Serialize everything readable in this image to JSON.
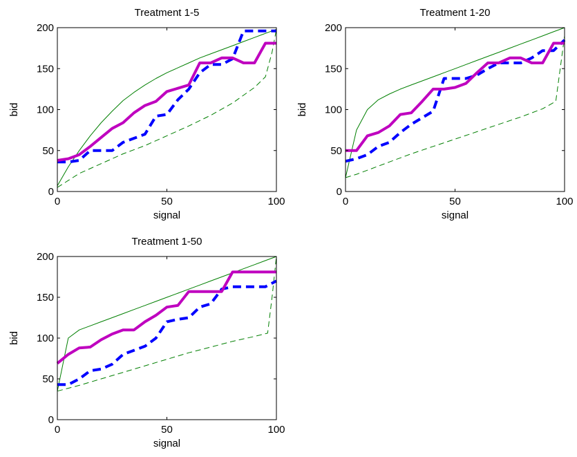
{
  "chart_data": [
    {
      "type": "line",
      "title": "Treatment 1-5",
      "xlabel": "signal",
      "ylabel": "bid",
      "xlim": [
        0,
        100
      ],
      "ylim": [
        0,
        200
      ],
      "xticks": [
        "0",
        "50",
        "100"
      ],
      "yticks": [
        "0",
        "50",
        "100",
        "150",
        "200"
      ],
      "grid": false,
      "series": [
        {
          "color": "#007f00",
          "style": "solid-thin",
          "x": [
            0,
            5,
            10,
            15,
            20,
            25,
            30,
            35,
            40,
            45,
            50,
            55,
            60,
            65,
            70,
            75,
            80,
            85,
            90,
            95,
            100
          ],
          "y": [
            7,
            30,
            50,
            68,
            84,
            98,
            111,
            121,
            130,
            138,
            145,
            151,
            157,
            163,
            168,
            173,
            178,
            183,
            188,
            193,
            198
          ]
        },
        {
          "color": "#007f00",
          "style": "dashed-thin",
          "x": [
            0,
            10,
            20,
            30,
            40,
            50,
            60,
            70,
            80,
            90,
            95,
            98,
            100
          ],
          "y": [
            5,
            22,
            34,
            46,
            56,
            68,
            80,
            93,
            108,
            127,
            140,
            170,
            198
          ]
        },
        {
          "color": "#0000ff",
          "style": "dashed-thick",
          "x": [
            0,
            5,
            10,
            15,
            20,
            25,
            30,
            35,
            40,
            45,
            50,
            55,
            60,
            65,
            70,
            75,
            80,
            85,
            90,
            95,
            100
          ],
          "y": [
            36,
            36,
            38,
            50,
            50,
            50,
            60,
            65,
            70,
            92,
            94,
            112,
            125,
            145,
            155,
            155,
            162,
            196,
            196,
            196,
            196
          ]
        },
        {
          "color": "#bf00bf",
          "style": "solid-thick",
          "x": [
            0,
            5,
            10,
            15,
            20,
            25,
            30,
            35,
            40,
            45,
            50,
            55,
            60,
            65,
            70,
            75,
            80,
            85,
            90,
            95,
            100
          ],
          "y": [
            38,
            40,
            45,
            55,
            66,
            77,
            84,
            96,
            105,
            110,
            122,
            126,
            130,
            157,
            157,
            163,
            163,
            157,
            157,
            181,
            181
          ]
        }
      ]
    },
    {
      "type": "line",
      "title": "Treatment 1-20",
      "xlabel": "signal",
      "ylabel": "bid",
      "xlim": [
        0,
        100
      ],
      "ylim": [
        0,
        200
      ],
      "xticks": [
        "0",
        "50",
        "100"
      ],
      "yticks": [
        "0",
        "50",
        "100",
        "150",
        "200"
      ],
      "grid": false,
      "series": [
        {
          "color": "#007f00",
          "style": "solid-thin",
          "x": [
            0,
            5,
            10,
            15,
            20,
            25,
            30,
            35,
            40,
            45,
            50,
            55,
            60,
            65,
            70,
            75,
            80,
            85,
            90,
            95,
            100
          ],
          "y": [
            17,
            75,
            100,
            112,
            119,
            125,
            130,
            135,
            140,
            145,
            150,
            155,
            160,
            165,
            170,
            175,
            180,
            185,
            190,
            195,
            200
          ]
        },
        {
          "color": "#007f00",
          "style": "dashed-thin",
          "x": [
            0,
            5,
            10,
            20,
            30,
            40,
            50,
            60,
            70,
            80,
            90,
            96,
            98,
            100
          ],
          "y": [
            17,
            21,
            26,
            36,
            46,
            55,
            64,
            73,
            82,
            91,
            101,
            110,
            150,
            190
          ]
        },
        {
          "color": "#0000ff",
          "style": "dashed-thick",
          "x": [
            0,
            5,
            10,
            15,
            20,
            25,
            30,
            35,
            40,
            45,
            50,
            55,
            60,
            65,
            70,
            75,
            80,
            85,
            90,
            95,
            100
          ],
          "y": [
            37,
            40,
            45,
            55,
            60,
            72,
            82,
            90,
            98,
            138,
            138,
            138,
            142,
            150,
            157,
            157,
            157,
            163,
            172,
            172,
            185
          ]
        },
        {
          "color": "#bf00bf",
          "style": "solid-thick",
          "x": [
            0,
            5,
            10,
            15,
            20,
            25,
            30,
            35,
            40,
            45,
            50,
            55,
            60,
            65,
            70,
            75,
            80,
            85,
            90,
            95,
            100
          ],
          "y": [
            50,
            50,
            68,
            72,
            80,
            94,
            96,
            110,
            125,
            125,
            127,
            132,
            145,
            157,
            157,
            163,
            163,
            157,
            157,
            181,
            181
          ]
        }
      ]
    },
    {
      "type": "line",
      "title": "Treatment 1-50",
      "xlabel": "signal",
      "ylabel": "bid",
      "xlim": [
        0,
        100
      ],
      "ylim": [
        0,
        200
      ],
      "xticks": [
        "0",
        "50",
        "100"
      ],
      "yticks": [
        "0",
        "50",
        "100",
        "150",
        "200"
      ],
      "grid": false,
      "series": [
        {
          "color": "#007f00",
          "style": "solid-thin",
          "x": [
            0,
            5,
            10,
            15,
            20,
            25,
            30,
            35,
            40,
            45,
            50,
            55,
            60,
            65,
            70,
            75,
            80,
            85,
            90,
            95,
            100
          ],
          "y": [
            35,
            100,
            110,
            115,
            120,
            125,
            130,
            135,
            140,
            145,
            150,
            155,
            160,
            165,
            170,
            175,
            180,
            185,
            190,
            195,
            200
          ]
        },
        {
          "color": "#007f00",
          "style": "dashed-thin",
          "x": [
            0,
            10,
            20,
            30,
            40,
            50,
            60,
            70,
            80,
            90,
            96,
            98,
            100
          ],
          "y": [
            35,
            42,
            50,
            58,
            66,
            74,
            82,
            89,
            96,
            102,
            106,
            150,
            200
          ]
        },
        {
          "color": "#0000ff",
          "style": "dashed-thick",
          "x": [
            0,
            5,
            10,
            15,
            20,
            25,
            30,
            35,
            40,
            45,
            50,
            55,
            60,
            65,
            70,
            75,
            80,
            85,
            90,
            95,
            100
          ],
          "y": [
            43,
            43,
            50,
            60,
            62,
            68,
            80,
            85,
            90,
            100,
            120,
            123,
            125,
            138,
            142,
            160,
            163,
            163,
            163,
            163,
            170
          ]
        },
        {
          "color": "#bf00bf",
          "style": "solid-thick",
          "x": [
            0,
            5,
            10,
            15,
            20,
            25,
            30,
            35,
            40,
            45,
            50,
            55,
            60,
            65,
            70,
            75,
            80,
            85,
            90,
            95,
            100
          ],
          "y": [
            69,
            80,
            88,
            89,
            98,
            105,
            110,
            110,
            120,
            128,
            138,
            140,
            157,
            157,
            157,
            157,
            181,
            181,
            181,
            181,
            181
          ]
        }
      ]
    }
  ]
}
